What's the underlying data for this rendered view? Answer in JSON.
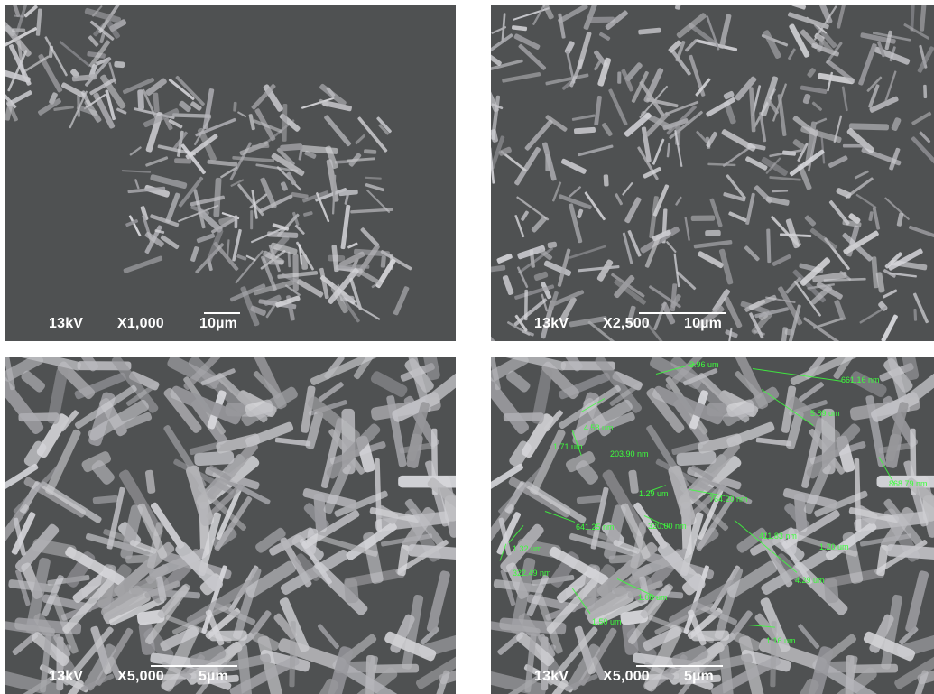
{
  "panels": [
    {
      "voltage": "13kV",
      "magnification": "X1,000",
      "scale": "10µm"
    },
    {
      "voltage": "13kV",
      "magnification": "X2,500",
      "scale": "10µm"
    },
    {
      "voltage": "13kV",
      "magnification": "X5,000",
      "scale": "5µm"
    },
    {
      "voltage": "13kV",
      "magnification": "X5,000",
      "scale": "5µm",
      "measurements": [
        "3.96 um",
        "661.16 nm",
        "4.58 um",
        "5.89 um",
        "1.71 um",
        "203.90 nm",
        "1.29 um",
        "764.20 nm",
        "868.79 nm",
        "641.25 nm",
        "320.00 nm",
        "411.83 nm",
        "1.32 um",
        "1.20 um",
        "322.49 nm",
        "4.29 um",
        "1.06 um",
        "1.50 um",
        "1.16 um"
      ]
    }
  ]
}
